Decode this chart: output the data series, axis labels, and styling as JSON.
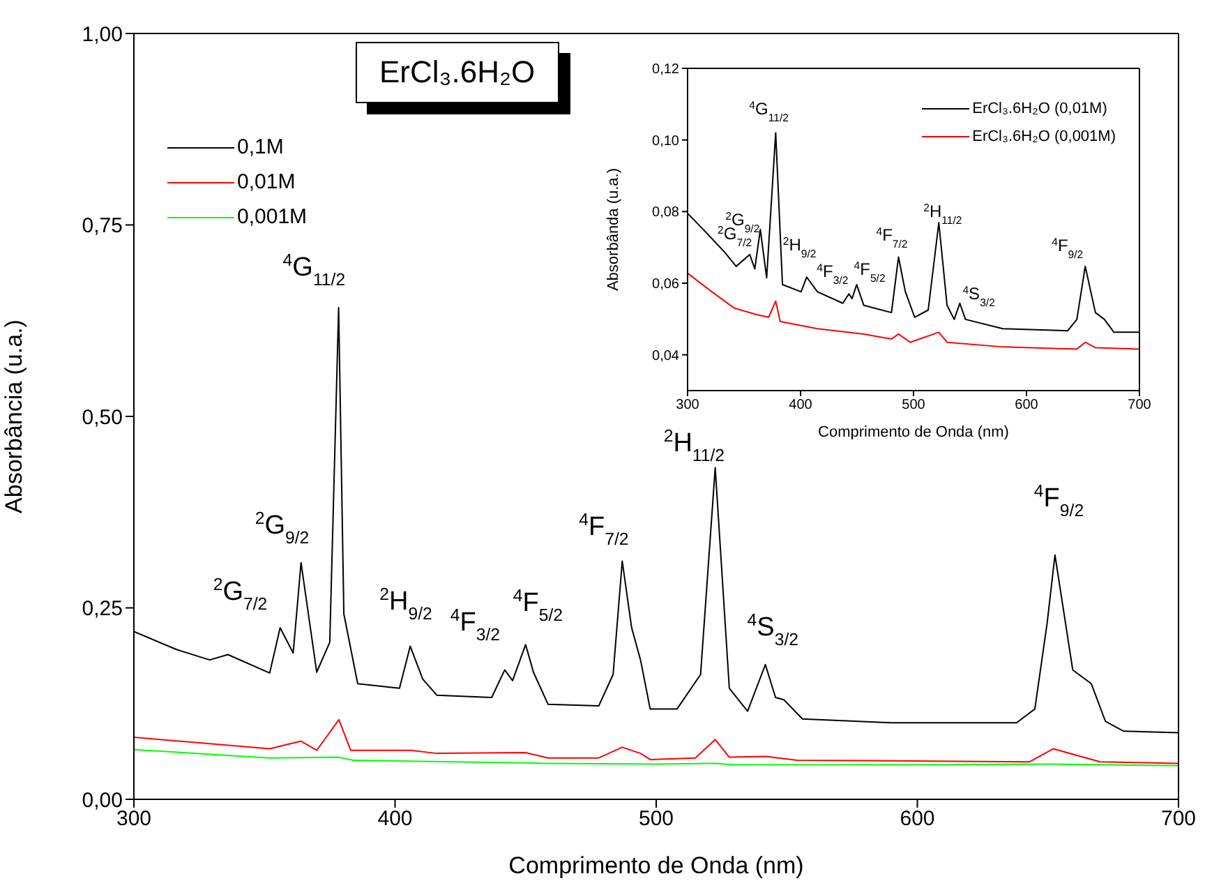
{
  "chart_data": [
    {
      "type": "line",
      "title": "ErCl₃.6H₂O",
      "xlabel": "Comprimento de Onda (nm)",
      "ylabel": "Absorbância (u.a.)",
      "xlim": [
        300,
        700
      ],
      "xticks": [
        300,
        400,
        500,
        600,
        700
      ],
      "ylim": [
        0,
        1
      ],
      "yticks": [
        {
          "value": 0,
          "label": "0,00"
        },
        {
          "value": 0.25,
          "label": "0,25"
        },
        {
          "value": 0.5,
          "label": "0,50"
        },
        {
          "value": 0.75,
          "label": "0,75"
        },
        {
          "value": 1,
          "label": "1,00"
        }
      ],
      "legend": "top left",
      "series": [
        {
          "name": "0,1M",
          "color": "#000000",
          "x": [
            300,
            316,
            329,
            336,
            352,
            356,
            361,
            364,
            370,
            375,
            378.4,
            380.4,
            385.7,
            401.7,
            405.8,
            410.6,
            416,
            437,
            442,
            445,
            450,
            453,
            458.6,
            478,
            483.5,
            487,
            490.6,
            494,
            497.7,
            508,
            517,
            522.6,
            528,
            535,
            541.8,
            545.7,
            548.9,
            556,
            590,
            638,
            645,
            649.7,
            652.7,
            659.5,
            666.6,
            672,
            679,
            700
          ],
          "values": [
            0.219,
            0.196,
            0.182,
            0.189,
            0.165,
            0.224,
            0.191,
            0.309,
            0.166,
            0.205,
            0.642,
            0.242,
            0.151,
            0.145,
            0.2,
            0.157,
            0.136,
            0.133,
            0.169,
            0.155,
            0.202,
            0.166,
            0.124,
            0.122,
            0.163,
            0.311,
            0.224,
            0.182,
            0.118,
            0.118,
            0.163,
            0.433,
            0.145,
            0.115,
            0.176,
            0.133,
            0.13,
            0.105,
            0.1,
            0.1,
            0.118,
            0.23,
            0.319,
            0.169,
            0.151,
            0.102,
            0.089,
            0.087
          ]
        },
        {
          "name": "0,01M",
          "color": "#ff0000",
          "x": [
            300,
            352,
            364,
            370,
            378.5,
            383,
            406,
            416,
            450,
            458.6,
            478,
            487,
            494,
            497.7,
            515,
            522.6,
            528,
            542,
            554,
            643,
            652,
            670,
            700
          ],
          "values": [
            0.081,
            0.066,
            0.076,
            0.064,
            0.104,
            0.064,
            0.064,
            0.06,
            0.061,
            0.054,
            0.054,
            0.068,
            0.06,
            0.052,
            0.054,
            0.078,
            0.055,
            0.056,
            0.051,
            0.049,
            0.066,
            0.049,
            0.047
          ]
        },
        {
          "name": "0,001M",
          "color": "#00ff00",
          "x": [
            300,
            352,
            378.5,
            384,
            458,
            500,
            522.6,
            530,
            600,
            652,
            700
          ],
          "values": [
            0.065,
            0.054,
            0.055,
            0.051,
            0.047,
            0.046,
            0.047,
            0.045,
            0.045,
            0.046,
            0.044
          ]
        }
      ],
      "annotations": [
        {
          "text": "$^{2}$G$_{7/2}$",
          "x": 356,
          "y": 0.224
        },
        {
          "text": "$^{2}$G$_{9/2}$",
          "x": 364,
          "y": 0.309
        },
        {
          "text": "$^{4}$G$_{11/2}$",
          "x": 378.4,
          "y": 0.642
        },
        {
          "text": "$^{2}$H$_{9/2}$",
          "x": 405.8,
          "y": 0.2
        },
        {
          "text": "$^{4}$F$_{3/2}$",
          "x": 442,
          "y": 0.169
        },
        {
          "text": "$^{4}$F$_{5/2}$",
          "x": 450,
          "y": 0.202
        },
        {
          "text": "$^{4}$F$_{7/2}$",
          "x": 487,
          "y": 0.311
        },
        {
          "text": "$^{2}$H$_{11/2}$",
          "x": 522.6,
          "y": 0.433
        },
        {
          "text": "$^{4}$S$_{3/2}$",
          "x": 541.8,
          "y": 0.176
        },
        {
          "text": "$^{4}$F$_{9/2}$",
          "x": 652.7,
          "y": 0.319
        }
      ]
    },
    {
      "type": "line",
      "xlabel": "Comprimento de Onda (nm)",
      "ylabel": "Absorbânda (u.a.)",
      "xlim": [
        300,
        700
      ],
      "xticks": [
        300,
        400,
        500,
        600,
        700
      ],
      "ylim": [
        0.03,
        0.12
      ],
      "yticks": [
        {
          "value": 0.04,
          "label": "0,04"
        },
        {
          "value": 0.06,
          "label": "0,06"
        },
        {
          "value": 0.08,
          "label": "0,08"
        },
        {
          "value": 0.1,
          "label": "0,10"
        },
        {
          "value": 0.12,
          "label": "0,12"
        }
      ],
      "legend": "top right",
      "series": [
        {
          "name": "ErCl₃.6H₂O (0,01M)",
          "color": "#000000",
          "x": [
            300,
            316,
            333,
            343,
            355,
            359.5,
            364.4,
            370,
            378,
            384,
            400.5,
            405.4,
            415,
            437.4,
            442.8,
            445.6,
            449.7,
            456,
            480.5,
            486.7,
            492.8,
            501,
            513,
            522.4,
            529.7,
            536,
            541,
            546,
            579,
            636.4,
            644.6,
            652,
            661,
            669,
            677.4,
            700
          ],
          "values": [
            0.0795,
            0.0743,
            0.0686,
            0.0647,
            0.068,
            0.064,
            0.075,
            0.0615,
            0.102,
            0.0596,
            0.0576,
            0.0617,
            0.0576,
            0.0544,
            0.057,
            0.0557,
            0.0596,
            0.0538,
            0.0518,
            0.0673,
            0.0576,
            0.0505,
            0.0525,
            0.0769,
            0.0538,
            0.0499,
            0.0544,
            0.0499,
            0.0473,
            0.0467,
            0.0499,
            0.0647,
            0.0518,
            0.0499,
            0.0463,
            0.0463
          ]
        },
        {
          "name": "ErCl₃.6H₂O (0,001M)",
          "color": "#ff0000",
          "x": [
            300,
            316,
            341,
            361.5,
            371.8,
            378,
            382,
            415,
            456,
            480.5,
            486.7,
            497,
            522.4,
            529.7,
            579,
            644.6,
            652,
            661,
            700
          ],
          "values": [
            0.0628,
            0.0589,
            0.0531,
            0.0512,
            0.0505,
            0.055,
            0.0493,
            0.0473,
            0.0458,
            0.0444,
            0.0458,
            0.0435,
            0.0463,
            0.0435,
            0.0422,
            0.0416,
            0.0435,
            0.042,
            0.0416
          ]
        }
      ],
      "annotations": [
        {
          "text": "$^{4}$G$_{11/2}$",
          "x": 378,
          "y": 0.102
        },
        {
          "text": "$^{2}$G$_{9/2}$",
          "x": 364.4,
          "y": 0.075
        },
        {
          "text": "$^{2}$G$_{7/2}$",
          "x": 355,
          "y": 0.068
        },
        {
          "text": "$^{2}$H$_{9/2}$",
          "x": 405.4,
          "y": 0.0617
        },
        {
          "text": "$^{4}$F$_{3/2}$",
          "x": 442.8,
          "y": 0.057
        },
        {
          "text": "$^{4}$F$_{5/2}$",
          "x": 449.7,
          "y": 0.0596
        },
        {
          "text": "$^{4}$F$_{7/2}$",
          "x": 486.7,
          "y": 0.0673
        },
        {
          "text": "$^{2}$H$_{11/2}$",
          "x": 522.4,
          "y": 0.0769
        },
        {
          "text": "$^{4}$S$_{3/2}$",
          "x": 541,
          "y": 0.0544
        },
        {
          "text": "$^{4}$F$_{9/2}$",
          "x": 652,
          "y": 0.0647
        }
      ]
    }
  ]
}
